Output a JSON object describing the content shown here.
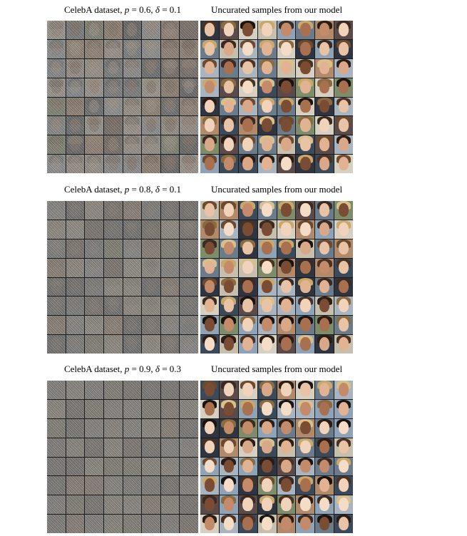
{
  "panels": [
    {
      "left_caption": {
        "prefix": "CelebA dataset, ",
        "p_math": "p",
        "p_eq": " = 0.6",
        "sep": ", ",
        "d_math": "δ",
        "d_eq": " = 0.1"
      },
      "right_caption": "Uncurated samples from our model",
      "corruption_level": 0.6
    },
    {
      "left_caption": {
        "prefix": "CelebA dataset, ",
        "p_math": "p",
        "p_eq": " = 0.8",
        "sep": ", ",
        "d_math": "δ",
        "d_eq": " = 0.1"
      },
      "right_caption": "Uncurated samples from our model",
      "corruption_level": 0.8
    },
    {
      "left_caption": {
        "prefix": "CelebA dataset, ",
        "p_math": "p",
        "p_eq": " = 0.9",
        "sep": ", ",
        "d_math": "δ",
        "d_eq": " = 0.3"
      },
      "right_caption": "Uncurated samples from our model",
      "corruption_level": 0.9
    }
  ]
}
